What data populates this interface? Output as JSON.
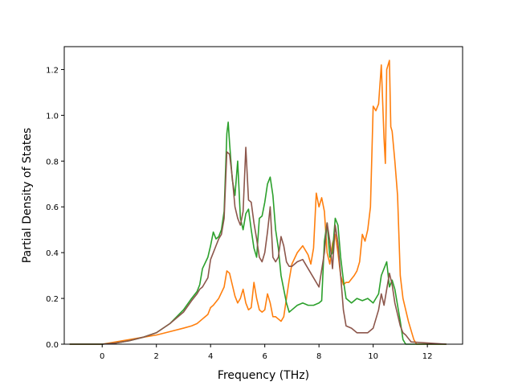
{
  "chart_data": {
    "type": "line",
    "title": "",
    "xlabel": "Frequency (THz)",
    "ylabel": "Partial Density of States",
    "xlim": [
      -1.4,
      13.3
    ],
    "ylim": [
      0,
      1.3
    ],
    "xticks": [
      0,
      2,
      4,
      6,
      8,
      10,
      12
    ],
    "yticks": [
      0.0,
      0.2,
      0.4,
      0.6,
      0.8,
      1.0,
      1.2
    ],
    "xtick_labels": [
      "0",
      "2",
      "4",
      "6",
      "8",
      "10",
      "12"
    ],
    "ytick_labels": [
      "0.0",
      "0.2",
      "0.4",
      "0.6",
      "0.8",
      "1.0",
      "1.2"
    ],
    "grid": false,
    "legend": "none",
    "series": [
      {
        "color": "#ff7f0e",
        "x": [
          -1.2,
          0,
          0.5,
          1,
          1.5,
          2,
          2.5,
          3,
          3.3,
          3.5,
          3.7,
          3.9,
          4.0,
          4.1,
          4.3,
          4.5,
          4.6,
          4.7,
          4.8,
          4.9,
          5.0,
          5.1,
          5.2,
          5.3,
          5.4,
          5.5,
          5.6,
          5.7,
          5.8,
          5.9,
          6.0,
          6.1,
          6.2,
          6.3,
          6.4,
          6.5,
          6.6,
          6.7,
          6.8,
          6.9,
          7.0,
          7.2,
          7.4,
          7.6,
          7.7,
          7.8,
          7.9,
          8.0,
          8.1,
          8.2,
          8.3,
          8.4,
          8.5,
          8.6,
          8.7,
          8.8,
          8.9,
          9.0,
          9.1,
          9.3,
          9.4,
          9.5,
          9.6,
          9.7,
          9.8,
          9.9,
          10.0,
          10.1,
          10.2,
          10.3,
          10.4,
          10.45,
          10.5,
          10.6,
          10.65,
          10.7,
          10.8,
          10.9,
          11.0,
          11.1,
          11.2,
          11.3,
          11.5,
          11.6,
          12.0,
          12.7
        ],
        "y": [
          0,
          0,
          0.01,
          0.02,
          0.03,
          0.04,
          0.055,
          0.07,
          0.08,
          0.09,
          0.11,
          0.13,
          0.16,
          0.17,
          0.2,
          0.25,
          0.32,
          0.31,
          0.26,
          0.21,
          0.18,
          0.2,
          0.24,
          0.18,
          0.15,
          0.16,
          0.27,
          0.2,
          0.15,
          0.14,
          0.15,
          0.22,
          0.18,
          0.12,
          0.12,
          0.11,
          0.1,
          0.12,
          0.2,
          0.28,
          0.35,
          0.4,
          0.43,
          0.39,
          0.35,
          0.42,
          0.66,
          0.6,
          0.64,
          0.58,
          0.4,
          0.35,
          0.44,
          0.48,
          0.4,
          0.3,
          0.26,
          0.27,
          0.27,
          0.3,
          0.32,
          0.36,
          0.48,
          0.45,
          0.5,
          0.6,
          1.04,
          1.02,
          1.05,
          1.22,
          0.9,
          0.79,
          1.2,
          1.24,
          0.95,
          0.93,
          0.8,
          0.65,
          0.3,
          0.2,
          0.15,
          0.1,
          0.02,
          0,
          0,
          0
        ]
      },
      {
        "color": "#2ca02c",
        "x": [
          -1.2,
          0,
          0.5,
          1,
          1.5,
          2,
          2.5,
          3,
          3.3,
          3.5,
          3.6,
          3.7,
          3.9,
          4.0,
          4.1,
          4.2,
          4.3,
          4.4,
          4.5,
          4.6,
          4.65,
          4.7,
          4.8,
          4.9,
          5.0,
          5.1,
          5.2,
          5.3,
          5.4,
          5.5,
          5.6,
          5.7,
          5.8,
          5.9,
          6.0,
          6.1,
          6.2,
          6.3,
          6.4,
          6.5,
          6.6,
          6.7,
          6.8,
          6.9,
          7.0,
          7.2,
          7.4,
          7.6,
          7.8,
          8.0,
          8.1,
          8.2,
          8.3,
          8.4,
          8.5,
          8.6,
          8.7,
          8.8,
          8.9,
          9.0,
          9.2,
          9.4,
          9.6,
          9.8,
          10.0,
          10.2,
          10.3,
          10.4,
          10.5,
          10.6,
          10.7,
          10.8,
          10.9,
          11.0,
          11.1,
          11.2,
          11.4,
          12.7
        ],
        "y": [
          0,
          0,
          0.005,
          0.015,
          0.03,
          0.05,
          0.09,
          0.15,
          0.2,
          0.23,
          0.26,
          0.33,
          0.38,
          0.43,
          0.49,
          0.46,
          0.47,
          0.5,
          0.58,
          0.92,
          0.97,
          0.88,
          0.72,
          0.65,
          0.8,
          0.55,
          0.5,
          0.57,
          0.59,
          0.5,
          0.42,
          0.38,
          0.55,
          0.56,
          0.62,
          0.7,
          0.73,
          0.65,
          0.5,
          0.42,
          0.3,
          0.24,
          0.18,
          0.14,
          0.15,
          0.17,
          0.18,
          0.17,
          0.17,
          0.18,
          0.19,
          0.45,
          0.53,
          0.38,
          0.4,
          0.55,
          0.52,
          0.38,
          0.28,
          0.2,
          0.18,
          0.2,
          0.19,
          0.2,
          0.18,
          0.22,
          0.3,
          0.33,
          0.36,
          0.25,
          0.28,
          0.24,
          0.17,
          0.1,
          0.02,
          0,
          0,
          0
        ]
      },
      {
        "color": "#8c564b",
        "x": [
          -1.2,
          0,
          0.5,
          1,
          1.5,
          2,
          2.5,
          3,
          3.3,
          3.5,
          3.6,
          3.7,
          3.9,
          4.0,
          4.1,
          4.2,
          4.3,
          4.4,
          4.5,
          4.6,
          4.7,
          4.8,
          4.9,
          5.0,
          5.1,
          5.2,
          5.3,
          5.4,
          5.5,
          5.6,
          5.7,
          5.8,
          5.9,
          6.0,
          6.1,
          6.2,
          6.3,
          6.4,
          6.5,
          6.6,
          6.7,
          6.8,
          6.9,
          7.0,
          7.2,
          7.4,
          7.6,
          7.8,
          8.0,
          8.2,
          8.3,
          8.4,
          8.5,
          8.6,
          8.7,
          8.8,
          8.9,
          9.0,
          9.2,
          9.4,
          9.6,
          9.8,
          10.0,
          10.2,
          10.3,
          10.4,
          10.5,
          10.6,
          10.7,
          10.8,
          10.9,
          11.0,
          11.1,
          11.2,
          11.4,
          12.7
        ],
        "y": [
          0,
          0,
          0.005,
          0.015,
          0.03,
          0.05,
          0.09,
          0.14,
          0.19,
          0.22,
          0.24,
          0.25,
          0.29,
          0.37,
          0.4,
          0.43,
          0.46,
          0.48,
          0.55,
          0.84,
          0.83,
          0.73,
          0.6,
          0.55,
          0.52,
          0.58,
          0.86,
          0.63,
          0.62,
          0.53,
          0.46,
          0.38,
          0.36,
          0.4,
          0.49,
          0.6,
          0.38,
          0.36,
          0.38,
          0.47,
          0.43,
          0.36,
          0.34,
          0.34,
          0.36,
          0.37,
          0.33,
          0.29,
          0.25,
          0.4,
          0.53,
          0.45,
          0.33,
          0.52,
          0.44,
          0.3,
          0.15,
          0.08,
          0.07,
          0.05,
          0.05,
          0.05,
          0.07,
          0.15,
          0.22,
          0.17,
          0.24,
          0.31,
          0.26,
          0.18,
          0.13,
          0.08,
          0.05,
          0.04,
          0.01,
          0
        ]
      }
    ]
  }
}
